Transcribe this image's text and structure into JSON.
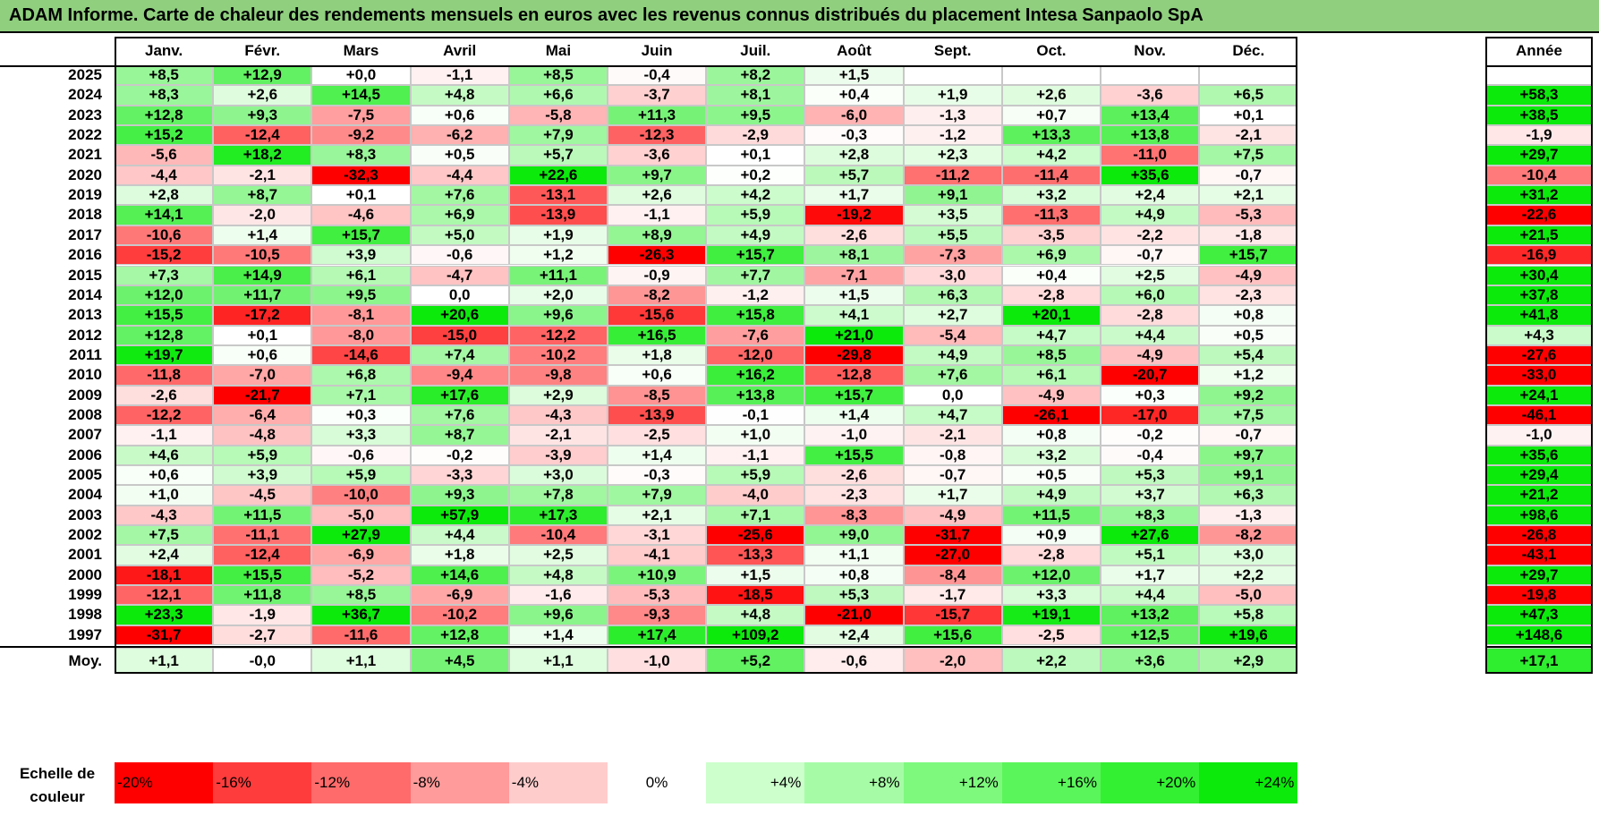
{
  "title": "ADAM Informe. Carte de chaleur des rendements mensuels en euros avec les revenus connus distribués du placement Intesa Sanpaolo SpA",
  "chart_data": {
    "type": "heatmap",
    "title": "ADAM Informe. Carte de chaleur des rendements mensuels en euros avec les revenus connus distribués du placement Intesa Sanpaolo SpA",
    "months": [
      "Janv.",
      "Févr.",
      "Mars",
      "Avril",
      "Mai",
      "Juin",
      "Juil.",
      "Août",
      "Sept.",
      "Oct.",
      "Nov.",
      "Déc."
    ],
    "year_header": "Année",
    "rows": [
      {
        "year": "2025",
        "values": [
          "+8,5",
          "+12,9",
          "+0,0",
          "-1,1",
          "+8,5",
          "-0,4",
          "+8,2",
          "+1,5",
          "",
          "",
          "",
          ""
        ],
        "annual": ""
      },
      {
        "year": "2024",
        "values": [
          "+8,3",
          "+2,6",
          "+14,5",
          "+4,8",
          "+6,6",
          "-3,7",
          "+8,1",
          "+0,4",
          "+1,9",
          "+2,6",
          "-3,6",
          "+6,5"
        ],
        "annual": "+58,3"
      },
      {
        "year": "2023",
        "values": [
          "+12,8",
          "+9,3",
          "-7,5",
          "+0,6",
          "-5,8",
          "+11,3",
          "+9,5",
          "-6,0",
          "-1,3",
          "+0,7",
          "+13,4",
          "+0,1"
        ],
        "annual": "+38,5"
      },
      {
        "year": "2022",
        "values": [
          "+15,2",
          "-12,4",
          "-9,2",
          "-6,2",
          "+7,9",
          "-12,3",
          "-2,9",
          "-0,3",
          "-1,2",
          "+13,3",
          "+13,8",
          "-2,1"
        ],
        "annual": "-1,9"
      },
      {
        "year": "2021",
        "values": [
          "-5,6",
          "+18,2",
          "+8,3",
          "+0,5",
          "+5,7",
          "-3,6",
          "+0,1",
          "+2,8",
          "+2,3",
          "+4,2",
          "-11,0",
          "+7,5"
        ],
        "annual": "+29,7"
      },
      {
        "year": "2020",
        "values": [
          "-4,4",
          "-2,1",
          "-32,3",
          "-4,4",
          "+22,6",
          "+9,7",
          "+0,2",
          "+5,7",
          "-11,2",
          "-11,4",
          "+35,6",
          "-0,7"
        ],
        "annual": "-10,4"
      },
      {
        "year": "2019",
        "values": [
          "+2,8",
          "+8,7",
          "+0,1",
          "+7,6",
          "-13,1",
          "+2,6",
          "+4,2",
          "+1,7",
          "+9,1",
          "+3,2",
          "+2,4",
          "+2,1"
        ],
        "annual": "+31,2"
      },
      {
        "year": "2018",
        "values": [
          "+14,1",
          "-2,0",
          "-4,6",
          "+6,9",
          "-13,9",
          "-1,1",
          "+5,9",
          "-19,2",
          "+3,5",
          "-11,3",
          "+4,9",
          "-5,3"
        ],
        "annual": "-22,6"
      },
      {
        "year": "2017",
        "values": [
          "-10,6",
          "+1,4",
          "+15,7",
          "+5,0",
          "+1,9",
          "+8,9",
          "+4,9",
          "-2,6",
          "+5,5",
          "-3,5",
          "-2,2",
          "-1,8"
        ],
        "annual": "+21,5"
      },
      {
        "year": "2016",
        "values": [
          "-15,2",
          "-10,5",
          "+3,9",
          "-0,6",
          "+1,2",
          "-26,3",
          "+15,7",
          "+8,1",
          "-7,3",
          "+6,9",
          "-0,7",
          "+15,7"
        ],
        "annual": "-16,9"
      },
      {
        "year": "2015",
        "values": [
          "+7,3",
          "+14,9",
          "+6,1",
          "-4,7",
          "+11,1",
          "-0,9",
          "+7,7",
          "-7,1",
          "-3,0",
          "+0,4",
          "+2,5",
          "-4,9"
        ],
        "annual": "+30,4"
      },
      {
        "year": "2014",
        "values": [
          "+12,0",
          "+11,7",
          "+9,5",
          "0,0",
          "+2,0",
          "-8,2",
          "-1,2",
          "+1,5",
          "+6,3",
          "-2,8",
          "+6,0",
          "-2,3"
        ],
        "annual": "+37,8"
      },
      {
        "year": "2013",
        "values": [
          "+15,5",
          "-17,2",
          "-8,1",
          "+20,6",
          "+9,6",
          "-15,6",
          "+15,8",
          "+4,1",
          "+2,7",
          "+20,1",
          "-2,8",
          "+0,8"
        ],
        "annual": "+41,8"
      },
      {
        "year": "2012",
        "values": [
          "+12,8",
          "+0,1",
          "-8,0",
          "-15,0",
          "-12,2",
          "+16,5",
          "-7,6",
          "+21,0",
          "-5,4",
          "+4,7",
          "+4,4",
          "+0,5"
        ],
        "annual": "+4,3"
      },
      {
        "year": "2011",
        "values": [
          "+19,7",
          "+0,6",
          "-14,6",
          "+7,4",
          "-10,2",
          "+1,8",
          "-12,0",
          "-29,8",
          "+4,9",
          "+8,5",
          "-4,9",
          "+5,4"
        ],
        "annual": "-27,6"
      },
      {
        "year": "2010",
        "values": [
          "-11,8",
          "-7,0",
          "+6,8",
          "-9,4",
          "-9,8",
          "+0,6",
          "+16,2",
          "-12,8",
          "+7,6",
          "+6,1",
          "-20,7",
          "+1,2"
        ],
        "annual": "-33,0"
      },
      {
        "year": "2009",
        "values": [
          "-2,6",
          "-21,7",
          "+7,1",
          "+17,6",
          "+2,9",
          "-8,5",
          "+13,8",
          "+15,7",
          "0,0",
          "-4,9",
          "+0,3",
          "+9,2"
        ],
        "annual": "+24,1"
      },
      {
        "year": "2008",
        "values": [
          "-12,2",
          "-6,4",
          "+0,3",
          "+7,6",
          "-4,3",
          "-13,9",
          "-0,1",
          "+1,4",
          "+4,7",
          "-26,1",
          "-17,0",
          "+7,5"
        ],
        "annual": "-46,1"
      },
      {
        "year": "2007",
        "values": [
          "-1,1",
          "-4,8",
          "+3,3",
          "+8,7",
          "-2,1",
          "-2,5",
          "+1,0",
          "-1,0",
          "-2,1",
          "+0,8",
          "-0,2",
          "-0,7"
        ],
        "annual": "-1,0"
      },
      {
        "year": "2006",
        "values": [
          "+4,6",
          "+5,9",
          "-0,6",
          "-0,2",
          "-3,9",
          "+1,4",
          "-1,1",
          "+15,5",
          "-0,8",
          "+3,2",
          "-0,4",
          "+9,7"
        ],
        "annual": "+35,6"
      },
      {
        "year": "2005",
        "values": [
          "+0,6",
          "+3,9",
          "+5,9",
          "-3,3",
          "+3,0",
          "-0,3",
          "+5,9",
          "-2,6",
          "-0,7",
          "+0,5",
          "+5,3",
          "+9,1"
        ],
        "annual": "+29,4"
      },
      {
        "year": "2004",
        "values": [
          "+1,0",
          "-4,5",
          "-10,0",
          "+9,3",
          "+7,8",
          "+7,9",
          "-4,0",
          "-2,3",
          "+1,7",
          "+4,9",
          "+3,7",
          "+6,3"
        ],
        "annual": "+21,2"
      },
      {
        "year": "2003",
        "values": [
          "-4,3",
          "+11,5",
          "-5,0",
          "+57,9",
          "+17,3",
          "+2,1",
          "+7,1",
          "-8,3",
          "-4,9",
          "+11,5",
          "+8,3",
          "-1,3"
        ],
        "annual": "+98,6"
      },
      {
        "year": "2002",
        "values": [
          "+7,5",
          "-11,1",
          "+27,9",
          "+4,4",
          "-10,4",
          "-3,1",
          "-25,6",
          "+9,0",
          "-31,7",
          "+0,9",
          "+27,6",
          "-8,2"
        ],
        "annual": "-26,8"
      },
      {
        "year": "2001",
        "values": [
          "+2,4",
          "-12,4",
          "-6,9",
          "+1,8",
          "+2,5",
          "-4,1",
          "-13,3",
          "+1,1",
          "-27,0",
          "-2,8",
          "+5,1",
          "+3,0"
        ],
        "annual": "-43,1"
      },
      {
        "year": "2000",
        "values": [
          "-18,1",
          "+15,5",
          "-5,2",
          "+14,6",
          "+4,8",
          "+10,9",
          "+1,5",
          "+0,8",
          "-8,4",
          "+12,0",
          "+1,7",
          "+2,2"
        ],
        "annual": "+29,7"
      },
      {
        "year": "1999",
        "values": [
          "-12,1",
          "+11,8",
          "+8,5",
          "-6,9",
          "-1,6",
          "-5,3",
          "-18,5",
          "+5,3",
          "-1,7",
          "+3,3",
          "+4,4",
          "-5,0"
        ],
        "annual": "-19,8"
      },
      {
        "year": "1998",
        "values": [
          "+23,3",
          "-1,9",
          "+36,7",
          "-10,2",
          "+9,6",
          "-9,3",
          "+4,8",
          "-21,0",
          "-15,7",
          "+19,1",
          "+13,2",
          "+5,8"
        ],
        "annual": "+47,3"
      },
      {
        "year": "1997",
        "values": [
          "-31,7",
          "-2,7",
          "-11,6",
          "+12,8",
          "+1,4",
          "+17,4",
          "+109,2",
          "+2,4",
          "+15,6",
          "-2,5",
          "+12,5",
          "+19,6"
        ],
        "annual": "+148,6"
      }
    ],
    "average": {
      "label": "Moy.",
      "values": [
        "+1,1",
        "-0,0",
        "+1,1",
        "+4,5",
        "+1,1",
        "-1,0",
        "+5,2",
        "-0,6",
        "-2,0",
        "+2,2",
        "+3,6",
        "+2,9"
      ],
      "annual": "+17,1"
    },
    "scale": {
      "label": "Echelle de couleur",
      "steps": [
        {
          "label": "-20%",
          "value": -20,
          "color": "#ff0000"
        },
        {
          "label": "-16%",
          "value": -16,
          "color": "#ff3c3c"
        },
        {
          "label": "-12%",
          "value": -12,
          "color": "#ff6b6b"
        },
        {
          "label": "-8%",
          "value": -8,
          "color": "#ff9b9b"
        },
        {
          "label": "-4%",
          "value": -4,
          "color": "#ffcccc"
        },
        {
          "label": "0%",
          "value": 0,
          "color": "#ffffff"
        },
        {
          "label": "+4%",
          "value": 4,
          "color": "#ccffcc"
        },
        {
          "label": "+8%",
          "value": 8,
          "color": "#a6fca6"
        },
        {
          "label": "+12%",
          "value": 12,
          "color": "#7ef97e"
        },
        {
          "label": "+16%",
          "value": 16,
          "color": "#5af55a"
        },
        {
          "label": "+20%",
          "value": 20,
          "color": "#33f033"
        },
        {
          "label": "+24%",
          "value": 24,
          "color": "#0cea0c"
        }
      ]
    }
  }
}
